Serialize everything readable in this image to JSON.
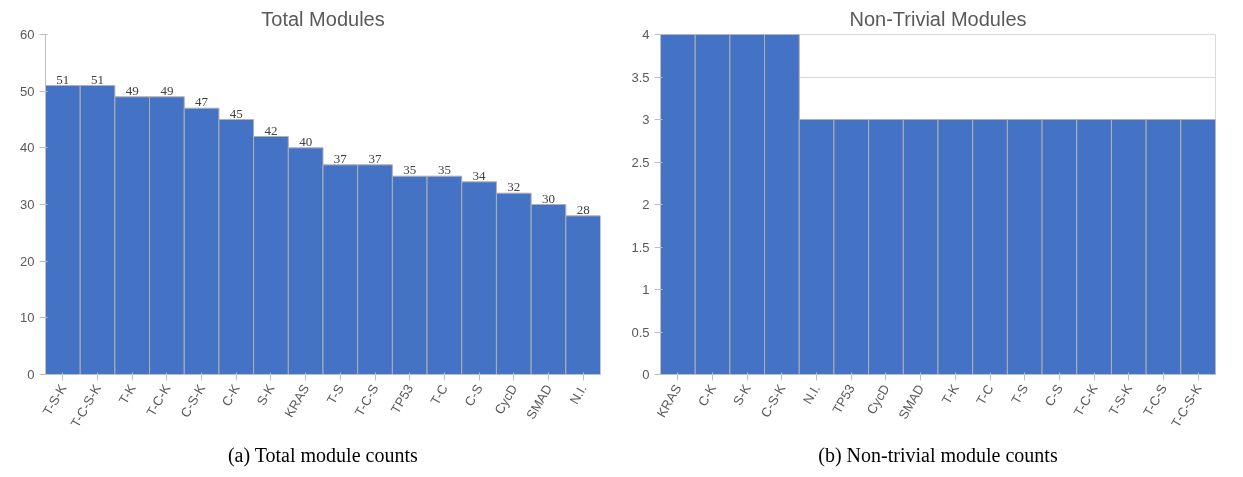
{
  "chart_data": [
    {
      "type": "bar",
      "title": "Total Modules",
      "categories": [
        "T-S-K",
        "T-C-S-K",
        "T-K",
        "T-C-K",
        "C-S-K",
        "C-K",
        "S-K",
        "KRAS",
        "T-S",
        "T-C-S",
        "TP53",
        "T-C",
        "C-S",
        "CycD",
        "SMAD",
        "N.I."
      ],
      "values": [
        51,
        51,
        49,
        49,
        47,
        45,
        42,
        40,
        37,
        37,
        35,
        35,
        34,
        32,
        30,
        28
      ],
      "color": "#4472c4",
      "ylim": [
        0,
        60
      ],
      "yticks": [
        0,
        10,
        20,
        30,
        40,
        50,
        60
      ],
      "grid": false,
      "data_labels": true,
      "annotations": [
        "(a) Total module counts"
      ]
    },
    {
      "type": "bar",
      "title": "Non-Trivial Modules",
      "categories": [
        "KRAS",
        "C-K",
        "S-K",
        "C-S-K",
        "N.I.",
        "TP53",
        "CycD",
        "SMAD",
        "T-K",
        "T-C",
        "T-S",
        "C-S",
        "T-C-K",
        "T-S-K",
        "T-C-S",
        "T-C-S-K"
      ],
      "values": [
        4,
        4,
        4,
        4,
        3,
        3,
        3,
        3,
        3,
        3,
        3,
        3,
        3,
        3,
        3,
        3
      ],
      "color": "#4472c4",
      "ylim": [
        0,
        4
      ],
      "yticks": [
        0,
        0.5,
        1,
        1.5,
        2,
        2.5,
        3,
        3.5,
        4
      ],
      "grid": "y",
      "annotations": [
        "(b) Non-trivial module counts"
      ]
    }
  ]
}
